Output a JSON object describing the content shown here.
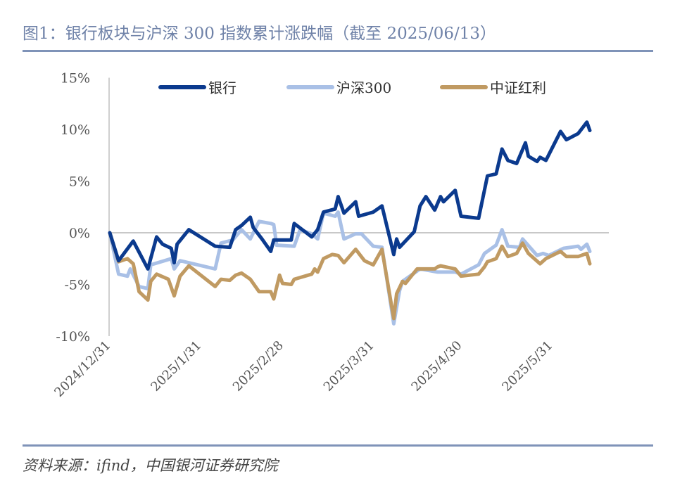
{
  "title": "图1：银行板块与沪深 300 指数累计涨跌幅（截至 2025/06/13）",
  "source": "资料来源：ifind，中国银河证券研究院",
  "chart_data": {
    "type": "line",
    "title": "图1：银行板块与沪深 300 指数累计涨跌幅（截至 2025/06/13）",
    "xlabel": "",
    "ylabel": "",
    "x_type": "date",
    "xlim": [
      "2024-12-31",
      "2025-06-13"
    ],
    "ylim": [
      -10,
      15
    ],
    "y_ticks": [
      15,
      10,
      5,
      0,
      -5,
      -10
    ],
    "y_tick_labels": [
      "15%",
      "10%",
      "5%",
      "0%",
      "-5%",
      "-10%"
    ],
    "x_ticks": [
      "2024-12-31",
      "2025-01-31",
      "2025-02-28",
      "2025-03-31",
      "2025-04-30",
      "2025-05-31"
    ],
    "x_tick_labels": [
      "2024/12/31",
      "2025/1/31",
      "2025/2/28",
      "2025/3/31",
      "2025/4/30",
      "2025/5/31"
    ],
    "grid": "zero line only",
    "legend_position": "top",
    "series": [
      {
        "name": "银行",
        "color": "#0B3A8E",
        "points": [
          [
            "2024-12-31",
            0
          ],
          [
            "2025-01-03",
            -2.7
          ],
          [
            "2025-01-08",
            -0.8
          ],
          [
            "2025-01-13",
            -3.5
          ],
          [
            "2025-01-16",
            -0.4
          ],
          [
            "2025-01-18",
            -1.1
          ],
          [
            "2025-01-21",
            -1.5
          ],
          [
            "2025-01-22",
            -2.9
          ],
          [
            "2025-01-23",
            -1.1
          ],
          [
            "2025-01-27",
            0.3
          ],
          [
            "2025-02-05",
            -1.3
          ],
          [
            "2025-02-10",
            -1.4
          ],
          [
            "2025-02-12",
            0.3
          ],
          [
            "2025-02-14",
            0.7
          ],
          [
            "2025-02-17",
            1.5
          ],
          [
            "2025-02-18",
            0.5
          ],
          [
            "2025-02-21",
            -0.6
          ],
          [
            "2025-02-24",
            -1.8
          ],
          [
            "2025-02-25",
            -0.7
          ],
          [
            "2025-03-03",
            -0.7
          ],
          [
            "2025-03-04",
            0.9
          ],
          [
            "2025-03-10",
            -0.4
          ],
          [
            "2025-03-12",
            0.3
          ],
          [
            "2025-03-14",
            2.0
          ],
          [
            "2025-03-18",
            2.3
          ],
          [
            "2025-03-19",
            3.5
          ],
          [
            "2025-03-21",
            1.9
          ],
          [
            "2025-03-25",
            3.0
          ],
          [
            "2025-03-26",
            1.6
          ],
          [
            "2025-03-31",
            2.0
          ],
          [
            "2025-04-03",
            2.6
          ],
          [
            "2025-04-07",
            -2.1
          ],
          [
            "2025-04-08",
            -0.6
          ],
          [
            "2025-04-09",
            -1.4
          ],
          [
            "2025-04-14",
            0.1
          ],
          [
            "2025-04-16",
            2.6
          ],
          [
            "2025-04-18",
            3.5
          ],
          [
            "2025-04-21",
            2.2
          ],
          [
            "2025-04-23",
            3.5
          ],
          [
            "2025-04-24",
            3.0
          ],
          [
            "2025-04-28",
            4.1
          ],
          [
            "2025-04-30",
            1.6
          ],
          [
            "2025-05-06",
            1.4
          ],
          [
            "2025-05-09",
            5.5
          ],
          [
            "2025-05-12",
            5.7
          ],
          [
            "2025-05-14",
            8.1
          ],
          [
            "2025-05-16",
            7.0
          ],
          [
            "2025-05-19",
            6.7
          ],
          [
            "2025-05-22",
            8.7
          ],
          [
            "2025-05-23",
            7.4
          ],
          [
            "2025-05-26",
            6.9
          ],
          [
            "2025-05-27",
            7.3
          ],
          [
            "2025-05-29",
            7.0
          ],
          [
            "2025-06-03",
            9.8
          ],
          [
            "2025-06-05",
            9.0
          ],
          [
            "2025-06-09",
            9.6
          ],
          [
            "2025-06-12",
            10.7
          ],
          [
            "2025-06-13",
            9.9
          ]
        ]
      },
      {
        "name": "沪深300",
        "color": "#A9C0E6",
        "points": [
          [
            "2024-12-31",
            0
          ],
          [
            "2025-01-03",
            -4.0
          ],
          [
            "2025-01-06",
            -4.2
          ],
          [
            "2025-01-07",
            -3.5
          ],
          [
            "2025-01-10",
            -5.2
          ],
          [
            "2025-01-13",
            -5.4
          ],
          [
            "2025-01-14",
            -3.1
          ],
          [
            "2025-01-21",
            -2.5
          ],
          [
            "2025-01-22",
            -3.5
          ],
          [
            "2025-01-24",
            -2.7
          ],
          [
            "2025-02-05",
            -3.5
          ],
          [
            "2025-02-07",
            -1.0
          ],
          [
            "2025-02-11",
            -0.7
          ],
          [
            "2025-02-14",
            0.3
          ],
          [
            "2025-02-17",
            -0.6
          ],
          [
            "2025-02-20",
            1.1
          ],
          [
            "2025-02-24",
            0.9
          ],
          [
            "2025-02-25",
            0.8
          ],
          [
            "2025-02-26",
            -1.2
          ],
          [
            "2025-03-04",
            -1.3
          ],
          [
            "2025-03-06",
            0.3
          ],
          [
            "2025-03-10",
            -0.1
          ],
          [
            "2025-03-12",
            -0.6
          ],
          [
            "2025-03-14",
            1.9
          ],
          [
            "2025-03-18",
            1.6
          ],
          [
            "2025-03-19",
            2.0
          ],
          [
            "2025-03-21",
            -0.6
          ],
          [
            "2025-03-25",
            -0.1
          ],
          [
            "2025-03-27",
            -0.1
          ],
          [
            "2025-03-31",
            -1.3
          ],
          [
            "2025-04-03",
            -1.4
          ],
          [
            "2025-04-07",
            -8.8
          ],
          [
            "2025-04-09",
            -5.6
          ],
          [
            "2025-04-10",
            -4.7
          ],
          [
            "2025-04-16",
            -3.5
          ],
          [
            "2025-04-22",
            -3.8
          ],
          [
            "2025-04-28",
            -3.8
          ],
          [
            "2025-04-30",
            -4.0
          ],
          [
            "2025-05-06",
            -3.1
          ],
          [
            "2025-05-08",
            -2.0
          ],
          [
            "2025-05-12",
            -1.2
          ],
          [
            "2025-05-14",
            0.3
          ],
          [
            "2025-05-16",
            -1.3
          ],
          [
            "2025-05-20",
            -1.4
          ],
          [
            "2025-05-21",
            -0.6
          ],
          [
            "2025-05-26",
            -2.2
          ],
          [
            "2025-05-28",
            -2.0
          ],
          [
            "2025-05-30",
            -2.2
          ],
          [
            "2025-06-04",
            -1.5
          ],
          [
            "2025-06-09",
            -1.3
          ],
          [
            "2025-06-10",
            -1.6
          ],
          [
            "2025-06-12",
            -1.1
          ],
          [
            "2025-06-13",
            -1.8
          ]
        ]
      },
      {
        "name": "中证红利",
        "color": "#C09A62",
        "points": [
          [
            "2024-12-31",
            0
          ],
          [
            "2025-01-03",
            -2.8
          ],
          [
            "2025-01-06",
            -2.5
          ],
          [
            "2025-01-08",
            -3.0
          ],
          [
            "2025-01-10",
            -5.7
          ],
          [
            "2025-01-13",
            -6.5
          ],
          [
            "2025-01-14",
            -4.7
          ],
          [
            "2025-01-16",
            -4.0
          ],
          [
            "2025-01-20",
            -4.5
          ],
          [
            "2025-01-22",
            -6.1
          ],
          [
            "2025-01-24",
            -4.2
          ],
          [
            "2025-01-27",
            -3.2
          ],
          [
            "2025-02-05",
            -5.2
          ],
          [
            "2025-02-07",
            -4.5
          ],
          [
            "2025-02-10",
            -4.6
          ],
          [
            "2025-02-12",
            -4.1
          ],
          [
            "2025-02-14",
            -3.9
          ],
          [
            "2025-02-17",
            -4.5
          ],
          [
            "2025-02-20",
            -5.7
          ],
          [
            "2025-02-24",
            -5.7
          ],
          [
            "2025-02-25",
            -6.4
          ],
          [
            "2025-02-27",
            -4.1
          ],
          [
            "2025-02-28",
            -4.9
          ],
          [
            "2025-03-03",
            -5.0
          ],
          [
            "2025-03-04",
            -4.5
          ],
          [
            "2025-03-10",
            -4.0
          ],
          [
            "2025-03-11",
            -3.5
          ],
          [
            "2025-03-12",
            -3.8
          ],
          [
            "2025-03-14",
            -2.5
          ],
          [
            "2025-03-17",
            -2.1
          ],
          [
            "2025-03-19",
            -2.2
          ],
          [
            "2025-03-21",
            -2.9
          ],
          [
            "2025-03-25",
            -1.6
          ],
          [
            "2025-03-28",
            -2.7
          ],
          [
            "2025-03-31",
            -3.1
          ],
          [
            "2025-04-03",
            -1.6
          ],
          [
            "2025-04-07",
            -8.3
          ],
          [
            "2025-04-08",
            -5.9
          ],
          [
            "2025-04-10",
            -4.7
          ],
          [
            "2025-04-11",
            -4.9
          ],
          [
            "2025-04-15",
            -3.5
          ],
          [
            "2025-04-21",
            -3.5
          ],
          [
            "2025-04-22",
            -3.3
          ],
          [
            "2025-04-23",
            -3.2
          ],
          [
            "2025-04-28",
            -3.5
          ],
          [
            "2025-04-30",
            -4.2
          ],
          [
            "2025-05-06",
            -4.0
          ],
          [
            "2025-05-08",
            -3.3
          ],
          [
            "2025-05-09",
            -2.8
          ],
          [
            "2025-05-12",
            -2.5
          ],
          [
            "2025-05-14",
            -1.3
          ],
          [
            "2025-05-16",
            -2.3
          ],
          [
            "2025-05-19",
            -2.0
          ],
          [
            "2025-05-21",
            -1.0
          ],
          [
            "2025-05-23",
            -2.0
          ],
          [
            "2025-05-27",
            -3.0
          ],
          [
            "2025-05-29",
            -2.5
          ],
          [
            "2025-06-03",
            -1.8
          ],
          [
            "2025-06-05",
            -2.3
          ],
          [
            "2025-06-09",
            -2.3
          ],
          [
            "2025-06-12",
            -2.0
          ],
          [
            "2025-06-13",
            -3.0
          ]
        ]
      }
    ]
  }
}
